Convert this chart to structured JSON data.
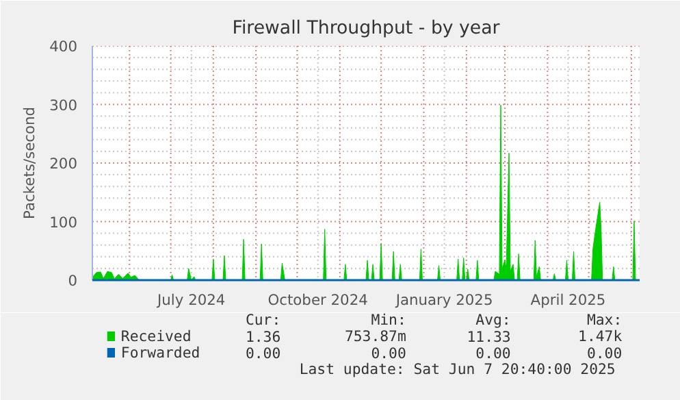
{
  "chart_data": {
    "type": "area",
    "title": "Firewall Throughput - by year",
    "ylabel": "Packets/second",
    "xlim": [
      "2024-05-05",
      "2025-06-07"
    ],
    "ylim": [
      0,
      400
    ],
    "xticks": [
      {
        "value": "2024-06-01",
        "label": null
      },
      {
        "value": "2024-07-01",
        "label": null
      },
      {
        "value": "2024-07-16",
        "label": "July 2024"
      },
      {
        "value": "2024-08-01",
        "label": null
      },
      {
        "value": "2024-09-01",
        "label": null
      },
      {
        "value": "2024-10-01",
        "label": null
      },
      {
        "value": "2024-10-16",
        "label": "October 2024"
      },
      {
        "value": "2024-11-01",
        "label": null
      },
      {
        "value": "2024-12-01",
        "label": null
      },
      {
        "value": "2025-01-01",
        "label": null
      },
      {
        "value": "2025-01-16",
        "label": "January 2025"
      },
      {
        "value": "2025-02-01",
        "label": null
      },
      {
        "value": "2025-03-01",
        "label": null
      },
      {
        "value": "2025-04-01",
        "label": null
      },
      {
        "value": "2025-04-16",
        "label": "April 2025"
      },
      {
        "value": "2025-05-01",
        "label": null
      },
      {
        "value": "2025-06-01",
        "label": null
      }
    ],
    "yticks": [
      0,
      {
        "value": 20,
        "label": null
      },
      {
        "value": 40,
        "label": null
      },
      {
        "value": 60,
        "label": null
      },
      {
        "value": 80,
        "label": null
      },
      100,
      {
        "value": 120,
        "label": null
      },
      {
        "value": 140,
        "label": null
      },
      {
        "value": 160,
        "label": null
      },
      {
        "value": 180,
        "label": null
      },
      200,
      {
        "value": 220,
        "label": null
      },
      {
        "value": 240,
        "label": null
      },
      {
        "value": 260,
        "label": null
      },
      {
        "value": 280,
        "label": null
      },
      300,
      {
        "value": 320,
        "label": null
      },
      {
        "value": 340,
        "label": null
      },
      {
        "value": 360,
        "label": null
      },
      {
        "value": 380,
        "label": null
      },
      400
    ],
    "grid": true,
    "legend": "bottom",
    "series": [
      {
        "name": "Received",
        "color": "#00cc00",
        "x": [
          "2024-05-05",
          "2024-05-08",
          "2024-05-11",
          "2024-05-13",
          "2024-05-16",
          "2024-05-19",
          "2024-05-21",
          "2024-05-24",
          "2024-05-27",
          "2024-05-31",
          "2024-06-02",
          "2024-06-05",
          "2024-06-08",
          "2024-07-01",
          "2024-07-02",
          "2024-07-03",
          "2024-07-13",
          "2024-07-14",
          "2024-07-16",
          "2024-07-18",
          "2024-07-19",
          "2024-07-31",
          "2024-08-01",
          "2024-08-02",
          "2024-08-08",
          "2024-08-09",
          "2024-08-10",
          "2024-08-22",
          "2024-08-23",
          "2024-08-24",
          "2024-09-04",
          "2024-09-05",
          "2024-09-06",
          "2024-09-19",
          "2024-09-20",
          "2024-09-22",
          "2024-10-20",
          "2024-10-21",
          "2024-10-22",
          "2024-11-04",
          "2024-11-05",
          "2024-11-06",
          "2024-11-20",
          "2024-11-21",
          "2024-11-22",
          "2024-11-24",
          "2024-11-25",
          "2024-11-26",
          "2024-11-30",
          "2024-12-01",
          "2024-12-02",
          "2024-12-09",
          "2024-12-10",
          "2024-12-11",
          "2024-12-14",
          "2024-12-15",
          "2024-12-16",
          "2024-12-29",
          "2024-12-30",
          "2024-12-31",
          "2025-01-11",
          "2025-01-12",
          "2025-01-13",
          "2025-01-25",
          "2025-01-26",
          "2025-01-27",
          "2025-01-29",
          "2025-01-30",
          "2025-01-31",
          "2025-02-01",
          "2025-02-02",
          "2025-02-03",
          "2025-02-08",
          "2025-02-09",
          "2025-02-10",
          "2025-02-21",
          "2025-02-22",
          "2025-02-25",
          "2025-02-26",
          "2025-02-27",
          "2025-03-01",
          "2025-03-02",
          "2025-03-04",
          "2025-03-05",
          "2025-03-07",
          "2025-03-08",
          "2025-03-10",
          "2025-03-11",
          "2025-03-12",
          "2025-03-22",
          "2025-03-23",
          "2025-03-24",
          "2025-03-26",
          "2025-03-27",
          "2025-04-05",
          "2025-04-06",
          "2025-04-07",
          "2025-04-14",
          "2025-04-15",
          "2025-04-16",
          "2025-04-19",
          "2025-04-20",
          "2025-04-21",
          "2025-05-03",
          "2025-05-04",
          "2025-05-06",
          "2025-05-09",
          "2025-05-10",
          "2025-05-11",
          "2025-05-18",
          "2025-05-19",
          "2025-05-20",
          "2025-06-02",
          "2025-06-03",
          "2025-06-04",
          "2025-06-07"
        ],
        "values": [
          5,
          13,
          14,
          3,
          15,
          13,
          2,
          10,
          3,
          12,
          5,
          8,
          0,
          0,
          9,
          0,
          0,
          20,
          0,
          6,
          0,
          0,
          36,
          0,
          0,
          42,
          0,
          0,
          70,
          0,
          0,
          62,
          0,
          0,
          29,
          0,
          0,
          87,
          0,
          0,
          27,
          0,
          0,
          34,
          0,
          0,
          27,
          0,
          0,
          62,
          0,
          0,
          49,
          0,
          0,
          27,
          0,
          0,
          53,
          0,
          0,
          25,
          0,
          0,
          36,
          0,
          0,
          38,
          0,
          0,
          19,
          0,
          0,
          34,
          0,
          0,
          15,
          10,
          299,
          20,
          34,
          20,
          217,
          15,
          27,
          0,
          0,
          45,
          0,
          0,
          68,
          5,
          23,
          0,
          0,
          11,
          0,
          0,
          34,
          0,
          0,
          49,
          0,
          0,
          53,
          87,
          133,
          87,
          0,
          0,
          23,
          0,
          0,
          101,
          0,
          0
        ]
      },
      {
        "name": "Forwarded",
        "color": "#0066b3",
        "type": "line",
        "x": [
          "2024-05-05",
          "2025-06-07"
        ],
        "values": [
          0,
          0
        ]
      }
    ],
    "annotations": [
      "Cur:",
      "Min:",
      "Avg:",
      "Max:",
      "1.36",
      "753.87m",
      "11.33",
      "1.47k",
      "0.00",
      "0.00",
      "0.00",
      "0.00",
      "Last update: Sat Jun  7 20:40:00 2025"
    ]
  }
}
